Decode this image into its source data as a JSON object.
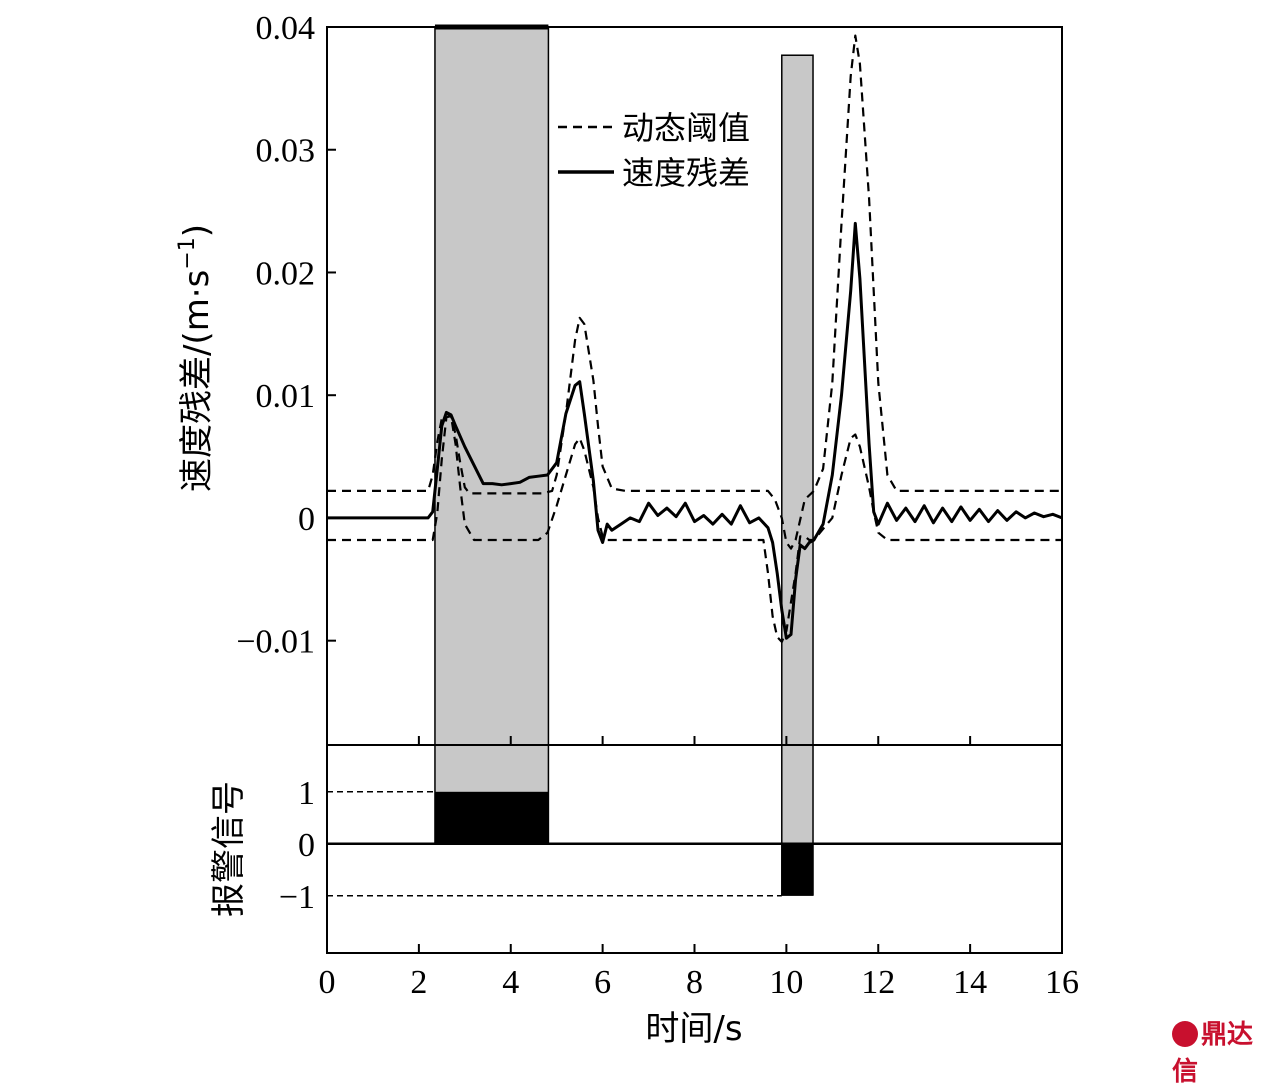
{
  "chart_data": [
    {
      "type": "line",
      "ylabel": "速度残差/(m·s⁻¹)",
      "ylabel_main": "速度残差/(m·s",
      "ylabel_sup": "−1",
      "ylabel_close": ")",
      "xlim": [
        0,
        16
      ],
      "ylim": [
        -0.0185,
        0.04
      ],
      "y_ticks": [
        -0.01,
        0,
        0.01,
        0.02,
        0.03,
        0.04
      ],
      "y_tick_labels": [
        "−0.01",
        "0",
        "0.01",
        "0.02",
        "0.03",
        "0.04"
      ],
      "legend_position": "top-right",
      "highlight_regions": [
        {
          "x0": 2.35,
          "x1": 4.82,
          "y_top": 0.04
        },
        {
          "x0": 9.9,
          "x1": 10.58,
          "y_top": 0.0377
        }
      ],
      "series": [
        {
          "name": "动态阈值",
          "style": "dashed",
          "x": [
            0,
            2.2,
            2.3,
            2.4,
            2.5,
            2.6,
            2.7,
            2.8,
            2.9,
            3.0,
            3.1,
            3.2,
            3.4,
            3.6,
            4.0,
            4.4,
            4.7,
            4.9,
            5.0,
            5.2,
            5.4,
            5.5,
            5.6,
            5.8,
            5.9,
            6.0,
            6.2,
            6.5,
            8.0,
            9.4,
            9.6,
            9.75,
            9.9,
            10.0,
            10.1,
            10.2,
            10.4,
            10.6,
            10.8,
            11.0,
            11.2,
            11.4,
            11.5,
            11.6,
            11.8,
            12.0,
            12.2,
            12.4,
            13.0,
            16.0
          ],
          "y": [
            0.0022,
            0.0022,
            0.0035,
            0.0062,
            0.0081,
            0.0085,
            0.0083,
            0.0068,
            0.0045,
            0.0025,
            0.002,
            0.002,
            0.002,
            0.002,
            0.002,
            0.002,
            0.002,
            0.0022,
            0.0035,
            0.0085,
            0.0145,
            0.0163,
            0.0158,
            0.0112,
            0.0075,
            0.0042,
            0.0024,
            0.0022,
            0.0022,
            0.0022,
            0.0022,
            0.0015,
            0.0,
            -0.002,
            -0.0025,
            -0.0018,
            0.0015,
            0.0022,
            0.004,
            0.011,
            0.024,
            0.036,
            0.0393,
            0.037,
            0.026,
            0.011,
            0.0035,
            0.0022,
            0.0022,
            0.0022
          ]
        },
        {
          "name": "",
          "style": "dashed",
          "x": [
            0,
            2.3,
            2.4,
            2.5,
            2.6,
            2.7,
            2.8,
            2.9,
            3.0,
            3.2,
            3.4,
            3.6,
            4.0,
            4.6,
            4.8,
            5.0,
            5.2,
            5.4,
            5.5,
            5.6,
            5.8,
            5.9,
            6.0,
            6.1,
            6.3,
            6.6,
            7.0,
            9.5,
            9.6,
            9.7,
            9.8,
            9.9,
            10.0,
            10.2,
            10.3,
            10.4,
            10.5,
            10.6,
            11.0,
            11.2,
            11.4,
            11.5,
            11.6,
            11.8,
            11.9,
            12.0,
            12.2,
            13.0,
            16.0
          ],
          "y": [
            -0.0018,
            -0.0018,
            0.0004,
            0.0048,
            0.0082,
            0.0083,
            0.006,
            0.0025,
            -0.0005,
            -0.0018,
            -0.0018,
            -0.0018,
            -0.0018,
            -0.0018,
            -0.0012,
            0.001,
            0.0035,
            0.006,
            0.0065,
            0.0055,
            0.0025,
            0.0,
            -0.0015,
            -0.0018,
            -0.0018,
            -0.0018,
            -0.0018,
            -0.0018,
            -0.0045,
            -0.008,
            -0.0097,
            -0.0101,
            -0.0092,
            -0.0045,
            -0.0015,
            -0.0015,
            -0.0018,
            -0.0018,
            0.0,
            0.0035,
            0.0065,
            0.0068,
            0.0058,
            0.0025,
            0.0005,
            -0.0012,
            -0.0018,
            -0.0018,
            -0.0018
          ]
        },
        {
          "name": "速度残差",
          "style": "solid",
          "x": [
            0,
            2.2,
            2.3,
            2.4,
            2.5,
            2.6,
            2.7,
            2.8,
            3.0,
            3.2,
            3.4,
            3.6,
            3.8,
            4.0,
            4.2,
            4.4,
            4.6,
            4.8,
            5.0,
            5.2,
            5.4,
            5.5,
            5.6,
            5.8,
            5.9,
            6.0,
            6.1,
            6.2,
            6.4,
            6.6,
            6.8,
            7.0,
            7.2,
            7.4,
            7.6,
            7.8,
            8.0,
            8.2,
            8.4,
            8.6,
            8.8,
            9.0,
            9.2,
            9.4,
            9.6,
            9.7,
            9.8,
            9.9,
            10.0,
            10.1,
            10.2,
            10.3,
            10.4,
            10.5,
            10.6,
            10.8,
            11.0,
            11.2,
            11.4,
            11.5,
            11.6,
            11.8,
            11.9,
            12.0,
            12.2,
            12.4,
            12.6,
            12.8,
            13.0,
            13.2,
            13.4,
            13.6,
            13.8,
            14.0,
            14.2,
            14.4,
            14.6,
            14.8,
            15.0,
            15.2,
            15.4,
            15.6,
            15.8,
            16.0
          ],
          "y": [
            0.0,
            0.0,
            0.0005,
            0.004,
            0.0075,
            0.0086,
            0.0084,
            0.0075,
            0.0058,
            0.0043,
            0.0028,
            0.0028,
            0.0027,
            0.0028,
            0.0029,
            0.0033,
            0.0034,
            0.0035,
            0.0045,
            0.0085,
            0.0108,
            0.0111,
            0.0085,
            0.003,
            -0.001,
            -0.002,
            -0.0005,
            -0.001,
            -0.0005,
            0.0,
            -0.0003,
            0.0012,
            0.0002,
            0.0008,
            0.0001,
            0.0012,
            -0.0003,
            0.0002,
            -0.0005,
            0.0003,
            -0.0005,
            0.001,
            -0.0004,
            0.0,
            -0.0008,
            -0.002,
            -0.0045,
            -0.0075,
            -0.0098,
            -0.0095,
            -0.005,
            -0.0022,
            -0.0025,
            -0.002,
            -0.0018,
            -0.0005,
            0.0035,
            0.01,
            0.0185,
            0.024,
            0.0195,
            0.006,
            0.0005,
            -0.0005,
            0.0012,
            -0.0002,
            0.0008,
            -0.0003,
            0.001,
            -0.0004,
            0.0008,
            -0.0003,
            0.0009,
            -0.0002,
            0.0007,
            -0.0003,
            0.0006,
            -0.0002,
            0.0005,
            0.0,
            0.0004,
            0.0001,
            0.0003,
            0.0
          ]
        }
      ]
    },
    {
      "type": "bar",
      "ylabel": "报警信号",
      "xlabel": "时间/s",
      "xlim": [
        0,
        16
      ],
      "ylim": [
        -2.1,
        1.9
      ],
      "x_ticks": [
        0,
        2,
        4,
        6,
        8,
        10,
        12,
        14,
        16
      ],
      "x_tick_labels": [
        "0",
        "2",
        "4",
        "6",
        "8",
        "10",
        "12",
        "14",
        "16"
      ],
      "y_ticks": [
        -1,
        0,
        1
      ],
      "y_tick_labels": [
        "−1",
        "0",
        "1"
      ],
      "alarm_intervals": [
        {
          "x0": 2.35,
          "x1": 4.82,
          "value": 1
        },
        {
          "x0": 9.9,
          "x1": 10.58,
          "value": -1
        }
      ]
    }
  ]
}
